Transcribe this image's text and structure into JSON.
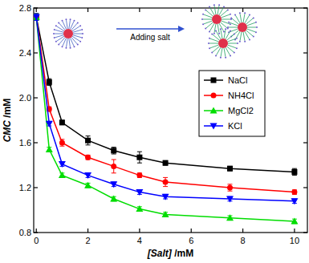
{
  "chart_data": {
    "type": "line",
    "x_label": "[Salt] /mM",
    "y_label": "CMC /mM",
    "annotations": [
      "Adding salt"
    ],
    "x": [
      0,
      0.5,
      1,
      2,
      3,
      4,
      5,
      7.5,
      10
    ],
    "xlim": [
      -0.1,
      10.5
    ],
    "xticks": [
      0,
      2,
      4,
      6,
      8,
      10
    ],
    "ylim": [
      0.8,
      2.8
    ],
    "yticks": [
      0.8,
      1.2,
      1.6,
      {
        "value": 2,
        "label": "2.0"
      },
      2.4,
      2.8
    ],
    "legend": "upper right",
    "grid": false,
    "series": [
      {
        "name": "NaCl",
        "color": "#000000",
        "marker": "square",
        "line_style": "solid",
        "values": [
          2.72,
          2.14,
          1.78,
          1.62,
          1.53,
          1.47,
          1.42,
          1.37,
          1.34
        ],
        "errors": [
          0.03,
          0.03,
          0.02,
          0.04,
          0.03,
          0.05,
          0.02,
          0.02,
          0.03
        ]
      },
      {
        "name": "NH4Cl",
        "color": "#ff0000",
        "marker": "circle",
        "line_style": "solid",
        "values": [
          2.72,
          1.9,
          1.6,
          1.47,
          1.39,
          1.31,
          1.25,
          1.2,
          1.16
        ],
        "errors": [
          0.03,
          0.02,
          0.03,
          0.02,
          0.06,
          0.02,
          0.04,
          0.03,
          0.02
        ]
      },
      {
        "name": "MgCl2",
        "color": "#00dd00",
        "marker": "triangle",
        "line_style": "solid",
        "values": [
          2.72,
          1.54,
          1.31,
          1.22,
          1.1,
          1.01,
          0.96,
          0.93,
          0.9
        ],
        "errors": [
          0.03,
          0.02,
          0.02,
          0.02,
          0.02,
          0.02,
          0.02,
          0.02,
          0.02
        ]
      },
      {
        "name": "KCl",
        "color": "#0000ff",
        "marker": "triangle-down",
        "line_style": "solid",
        "values": [
          2.72,
          1.77,
          1.41,
          1.31,
          1.23,
          1.16,
          1.12,
          1.1,
          1.08
        ],
        "errors": [
          0.03,
          0.02,
          0.02,
          0.02,
          0.02,
          0.02,
          0.02,
          0.02,
          0.02
        ]
      }
    ]
  }
}
